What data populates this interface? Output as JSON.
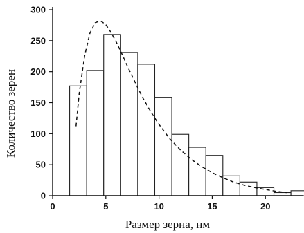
{
  "chart_data": {
    "type": "bar",
    "xlabel": "Размер зерна, нм",
    "ylabel": "Количество зерен",
    "xlim": [
      0,
      23.5
    ],
    "ylim": [
      0,
      300
    ],
    "x_ticks": [
      0,
      5,
      10,
      15,
      20
    ],
    "y_ticks": [
      0,
      50,
      100,
      150,
      200,
      250,
      300
    ],
    "bin_width": 1.6,
    "bins": [
      {
        "x0": 1.6,
        "value": 177
      },
      {
        "x0": 3.2,
        "value": 202
      },
      {
        "x0": 4.8,
        "value": 260
      },
      {
        "x0": 6.4,
        "value": 231
      },
      {
        "x0": 8.0,
        "value": 212
      },
      {
        "x0": 9.6,
        "value": 158
      },
      {
        "x0": 11.2,
        "value": 99
      },
      {
        "x0": 12.8,
        "value": 78
      },
      {
        "x0": 14.4,
        "value": 65
      },
      {
        "x0": 16.0,
        "value": 32
      },
      {
        "x0": 17.6,
        "value": 22
      },
      {
        "x0": 19.2,
        "value": 13
      },
      {
        "x0": 20.8,
        "value": 5
      },
      {
        "x0": 22.4,
        "value": 8
      }
    ],
    "fit_curve": {
      "style": "dashed",
      "x": [
        2.2,
        2.5,
        3.0,
        3.5,
        4.0,
        4.5,
        5.0,
        5.5,
        6.0,
        6.5,
        7.0,
        7.5,
        8.0,
        8.5,
        9.0,
        9.5,
        10.0,
        11.0,
        12.0,
        13.0,
        14.0,
        15.0,
        16.0,
        17.0,
        18.0,
        19.0,
        20.0,
        21.0,
        22.0
      ],
      "y": [
        112,
        165,
        225,
        262,
        279,
        282,
        276,
        263,
        247,
        229,
        210,
        192,
        174,
        157,
        142,
        128,
        115,
        92,
        74,
        59,
        47,
        37,
        29,
        22,
        17,
        13,
        10,
        7,
        5
      ]
    }
  }
}
